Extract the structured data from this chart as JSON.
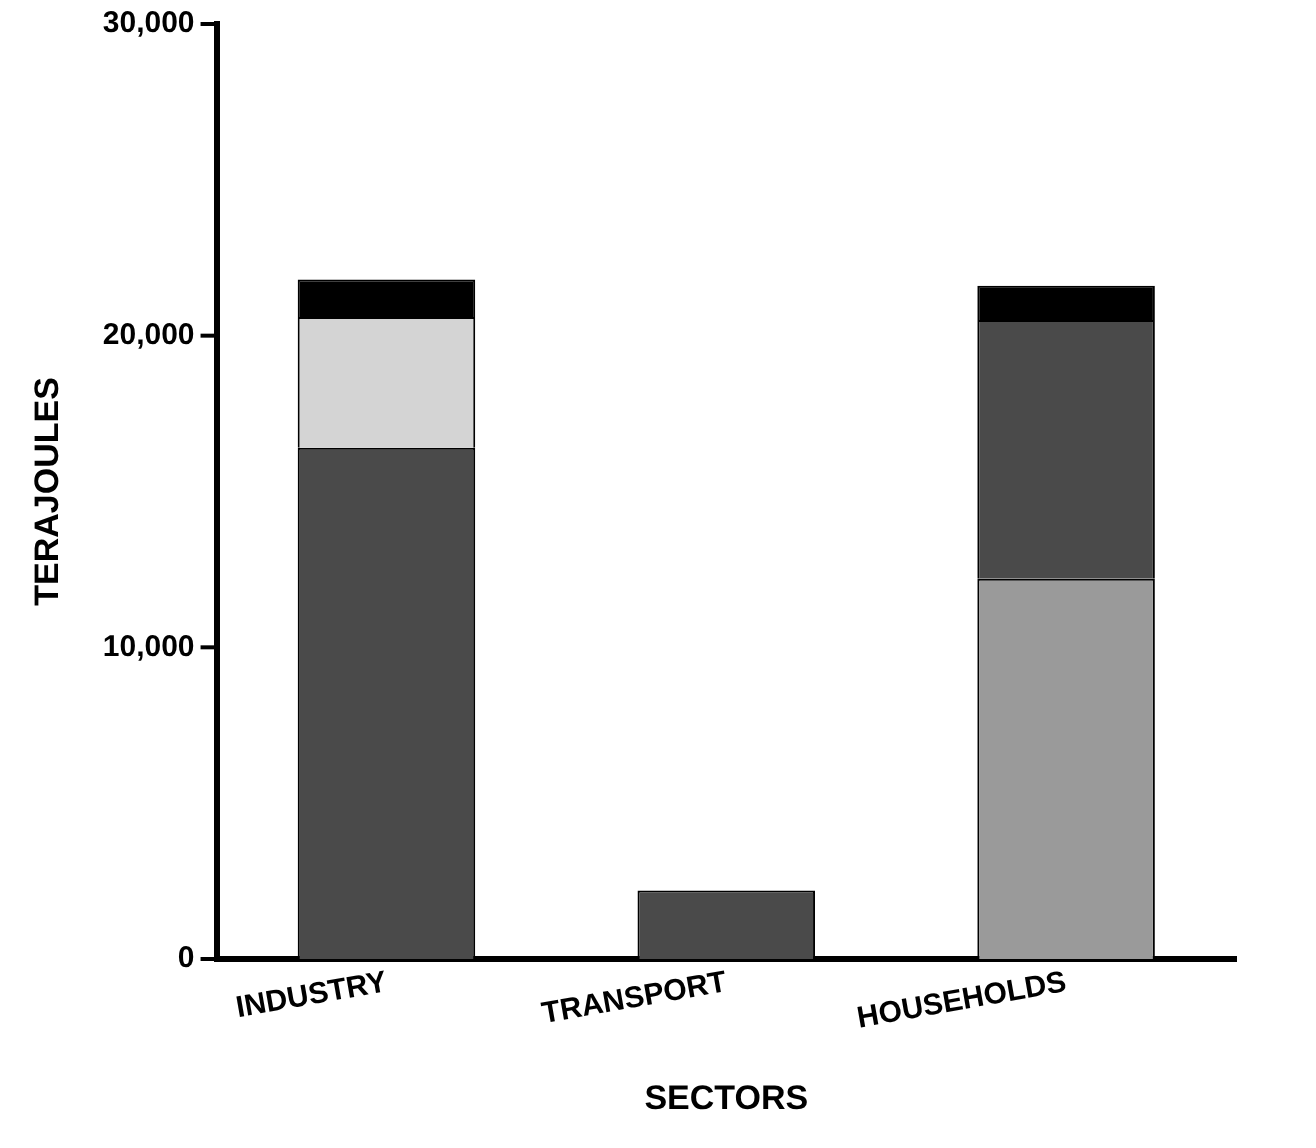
{
  "chart_data": {
    "type": "bar",
    "stacked": true,
    "xlabel": "SECTORS",
    "ylabel": "TERAJOULES",
    "categories": [
      "INDUSTRY",
      "TRANSPORT",
      "HOUSEHOLDS"
    ],
    "series": [
      {
        "color": "#9a9a9a",
        "values": [
          null,
          null,
          12200
        ]
      },
      {
        "color": "#4a4a4a",
        "values": [
          16400,
          2200,
          8300
        ]
      },
      {
        "color": "#d4d4d4",
        "values": [
          4200,
          null,
          null
        ]
      },
      {
        "color": "#000000",
        "values": [
          1200,
          null,
          1100
        ]
      }
    ],
    "ylim": [
      0,
      30000
    ],
    "yticks": [
      0,
      {
        "value": 10000,
        "label": "10,000"
      },
      {
        "value": 20000,
        "label": "20,000"
      },
      {
        "value": 30000,
        "label": "30,000"
      }
    ],
    "grid": false,
    "legend": false
  }
}
